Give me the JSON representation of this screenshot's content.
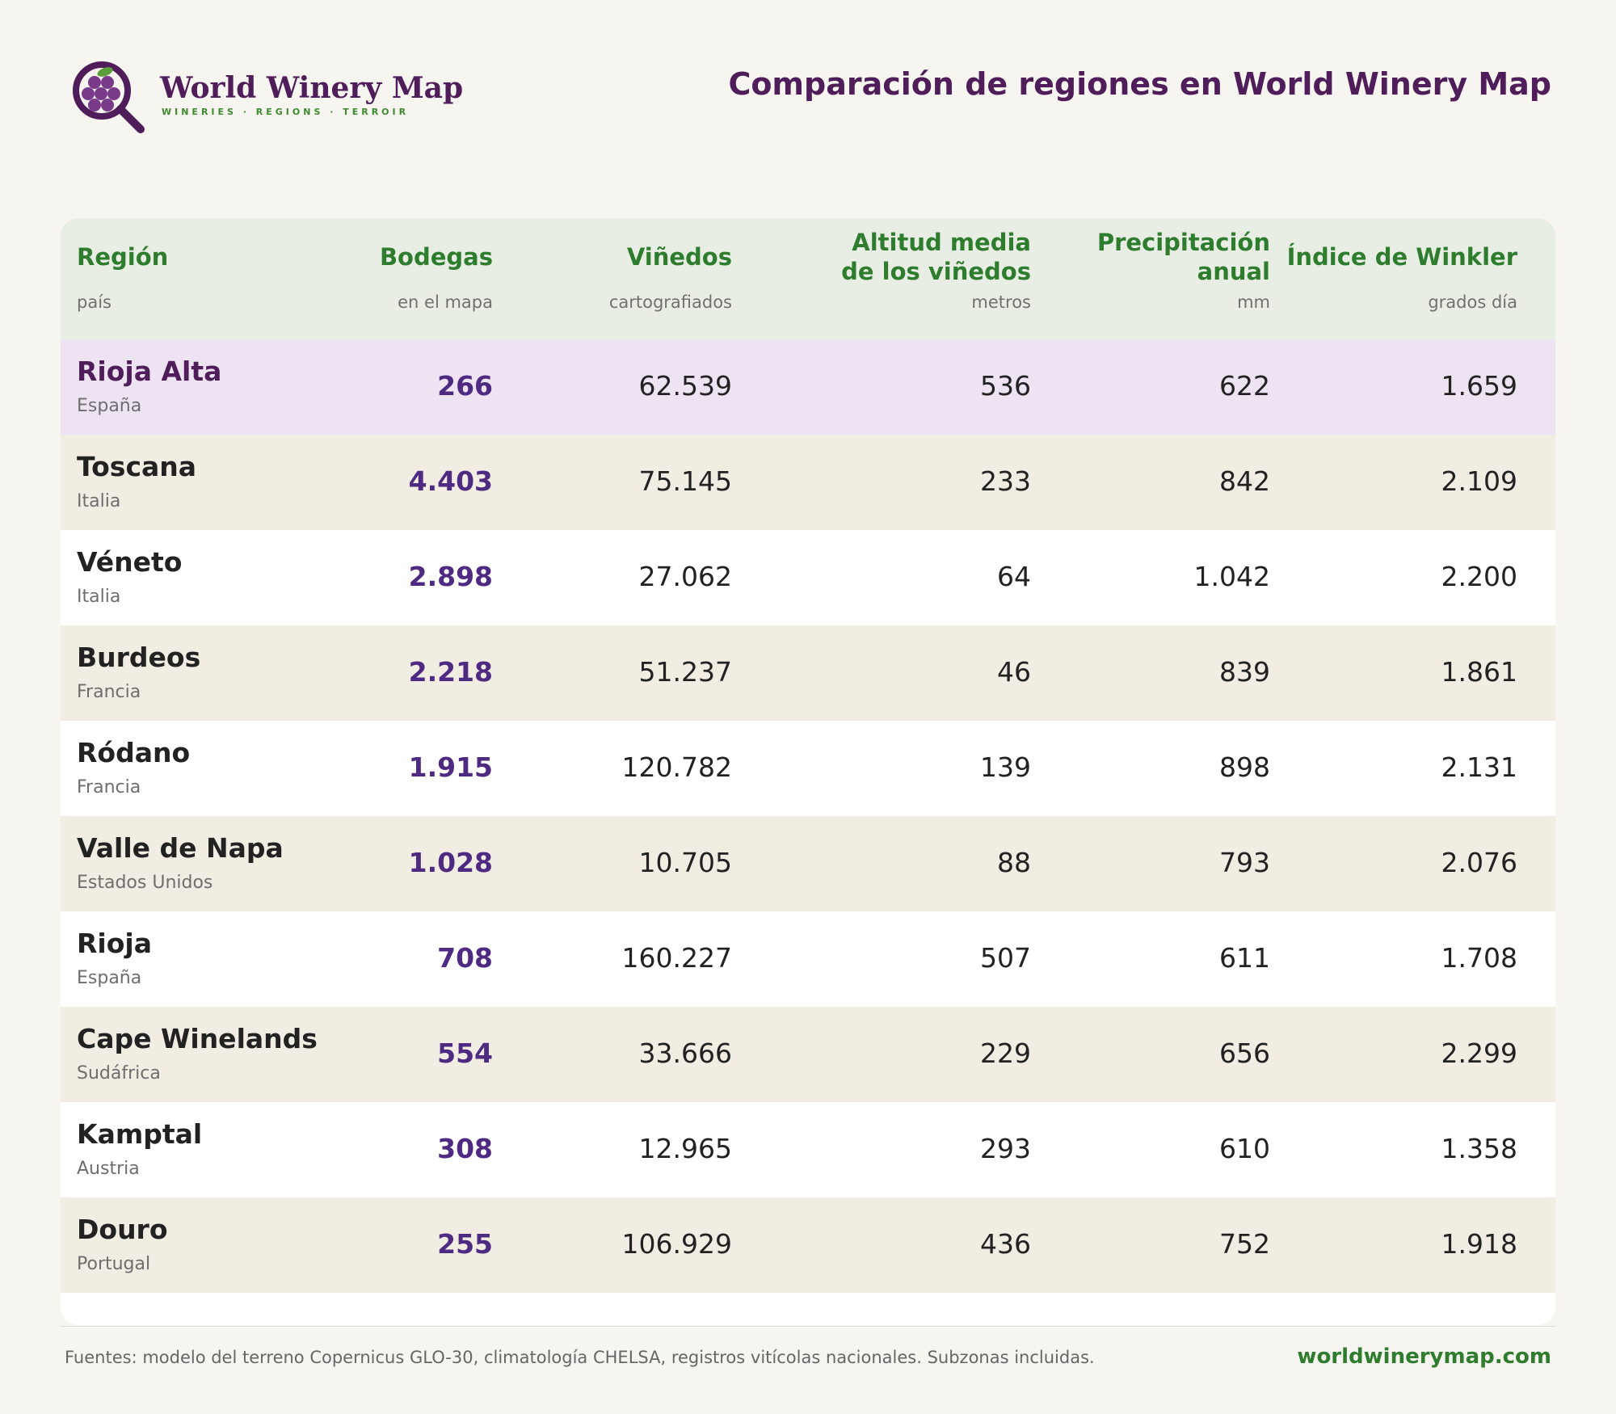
{
  "brand": {
    "name": "World Winery Map",
    "tagline": "WINERIES · REGIONS · TERROIR"
  },
  "page_title": "Comparación de regiones en World Winery Map",
  "colors": {
    "brand_purple": "#4f1d59",
    "accent_green": "#2e7d2e",
    "highlight_row": "#ede3f2",
    "alt_row": "#f1ede3"
  },
  "table": {
    "columns": [
      {
        "title": "Región",
        "sub": "país"
      },
      {
        "title": "Bodegas",
        "sub": "en el mapa"
      },
      {
        "title": "Viñedos",
        "sub": "cartografiados"
      },
      {
        "title": "Altitud media\nde los viñedos",
        "sub": "metros"
      },
      {
        "title": "Precipitación\nanual",
        "sub": "mm"
      },
      {
        "title": "Índice de Winkler",
        "sub": "grados día"
      }
    ],
    "rows": [
      {
        "region": "Rioja Alta",
        "country": "España",
        "bodegas": "266",
        "vinedos": "62.539",
        "altitud": "536",
        "precipitacion": "622",
        "winkler": "1.659"
      },
      {
        "region": "Toscana",
        "country": "Italia",
        "bodegas": "4.403",
        "vinedos": "75.145",
        "altitud": "233",
        "precipitacion": "842",
        "winkler": "2.109"
      },
      {
        "region": "Véneto",
        "country": "Italia",
        "bodegas": "2.898",
        "vinedos": "27.062",
        "altitud": "64",
        "precipitacion": "1.042",
        "winkler": "2.200"
      },
      {
        "region": "Burdeos",
        "country": "Francia",
        "bodegas": "2.218",
        "vinedos": "51.237",
        "altitud": "46",
        "precipitacion": "839",
        "winkler": "1.861"
      },
      {
        "region": "Ródano",
        "country": "Francia",
        "bodegas": "1.915",
        "vinedos": "120.782",
        "altitud": "139",
        "precipitacion": "898",
        "winkler": "2.131"
      },
      {
        "region": "Valle de Napa",
        "country": "Estados Unidos",
        "bodegas": "1.028",
        "vinedos": "10.705",
        "altitud": "88",
        "precipitacion": "793",
        "winkler": "2.076"
      },
      {
        "region": "Rioja",
        "country": "España",
        "bodegas": "708",
        "vinedos": "160.227",
        "altitud": "507",
        "precipitacion": "611",
        "winkler": "1.708"
      },
      {
        "region": "Cape Winelands",
        "country": "Sudáfrica",
        "bodegas": "554",
        "vinedos": "33.666",
        "altitud": "229",
        "precipitacion": "656",
        "winkler": "2.299"
      },
      {
        "region": "Kamptal",
        "country": "Austria",
        "bodegas": "308",
        "vinedos": "12.965",
        "altitud": "293",
        "precipitacion": "610",
        "winkler": "1.358"
      },
      {
        "region": "Douro",
        "country": "Portugal",
        "bodegas": "255",
        "vinedos": "106.929",
        "altitud": "436",
        "precipitacion": "752",
        "winkler": "1.918"
      }
    ]
  },
  "footer": {
    "sources": "Fuentes: modelo del terreno Copernicus GLO-30, climatología CHELSA, registros vitícolas nacionales. Subzonas incluidas.",
    "url": "worldwinerymap.com"
  }
}
